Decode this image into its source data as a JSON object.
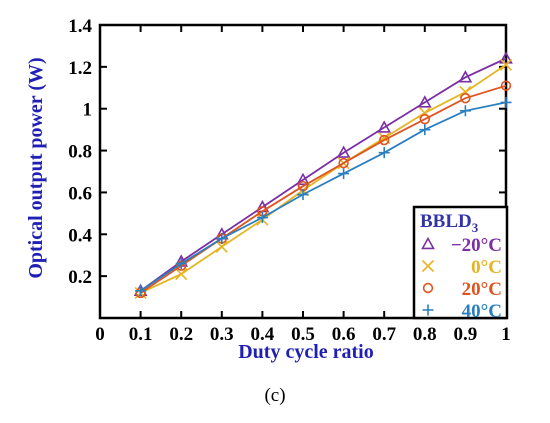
{
  "caption": "(c)",
  "chart_data": {
    "type": "line",
    "xlabel": "Duty cycle ratio",
    "ylabel": "Optical output power (W)",
    "xlim": [
      0,
      1
    ],
    "ylim": [
      0,
      1.4
    ],
    "x_ticks": [
      "0",
      "0.1",
      "0.2",
      "0.3",
      "0.4",
      "0.5",
      "0.6",
      "0.7",
      "0.8",
      "0.9",
      "1"
    ],
    "y_ticks": [
      "0.2",
      "0.4",
      "0.6",
      "0.8",
      "1",
      "1.2",
      "1.4"
    ],
    "y_tick_values": [
      0.2,
      0.4,
      0.6,
      0.8,
      1.0,
      1.2,
      1.4
    ],
    "grid": false,
    "legend": {
      "placement": "bottom-right",
      "title_main": "BBLD",
      "title_sub": "3"
    },
    "x": [
      0.1,
      0.2,
      0.3,
      0.4,
      0.5,
      0.6,
      0.7,
      0.8,
      0.9,
      1.0
    ],
    "series": [
      {
        "name": "−20°C",
        "marker": "triangle",
        "color": "#7b2fa5",
        "values": [
          0.13,
          0.27,
          0.4,
          0.53,
          0.66,
          0.79,
          0.91,
          1.03,
          1.15,
          1.24
        ]
      },
      {
        "name": "0°C",
        "marker": "x",
        "color": "#e6b422",
        "values": [
          0.12,
          0.21,
          0.34,
          0.47,
          0.61,
          0.74,
          0.86,
          0.98,
          1.08,
          1.21
        ]
      },
      {
        "name": "20°C",
        "marker": "circle",
        "color": "#e0541f",
        "values": [
          0.12,
          0.25,
          0.38,
          0.51,
          0.63,
          0.74,
          0.85,
          0.95,
          1.05,
          1.11
        ]
      },
      {
        "name": "40°C",
        "marker": "plus",
        "color": "#2a7fc0",
        "values": [
          0.13,
          0.26,
          0.38,
          0.48,
          0.59,
          0.69,
          0.79,
          0.9,
          0.99,
          1.03
        ]
      }
    ]
  }
}
